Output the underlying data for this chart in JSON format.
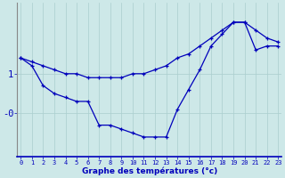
{
  "xlabel": "Graphe des températures (°c)",
  "background_color": "#cde8e8",
  "line_color": "#0000bb",
  "x_hours": [
    0,
    1,
    2,
    3,
    4,
    5,
    6,
    7,
    8,
    9,
    10,
    11,
    12,
    13,
    14,
    15,
    16,
    17,
    18,
    19,
    20,
    21,
    22,
    23
  ],
  "temp_upper": [
    1.4,
    1.3,
    1.2,
    1.1,
    1.0,
    1.0,
    0.9,
    0.9,
    0.9,
    0.9,
    1.0,
    1.0,
    1.1,
    1.2,
    1.4,
    1.5,
    1.7,
    1.9,
    2.1,
    2.3,
    2.3,
    2.1,
    1.9,
    1.8
  ],
  "temp_lower": [
    1.4,
    1.2,
    0.7,
    0.5,
    0.4,
    0.3,
    0.3,
    -0.3,
    -0.3,
    -0.4,
    -0.5,
    -0.6,
    -0.6,
    -0.6,
    0.1,
    0.6,
    1.1,
    1.7,
    2.0,
    2.3,
    2.3,
    1.6,
    1.7,
    1.7
  ],
  "ytick_positions": [
    0.0,
    1.0
  ],
  "ytick_labels": [
    "-0",
    "1"
  ],
  "ylim": [
    -1.1,
    2.8
  ],
  "xlim": [
    -0.3,
    23.3
  ],
  "grid_color": "#aacece",
  "spine_color": "#888888",
  "xlabel_fontsize": 6.5,
  "xtick_fontsize": 5.0,
  "ytick_fontsize": 7.5
}
